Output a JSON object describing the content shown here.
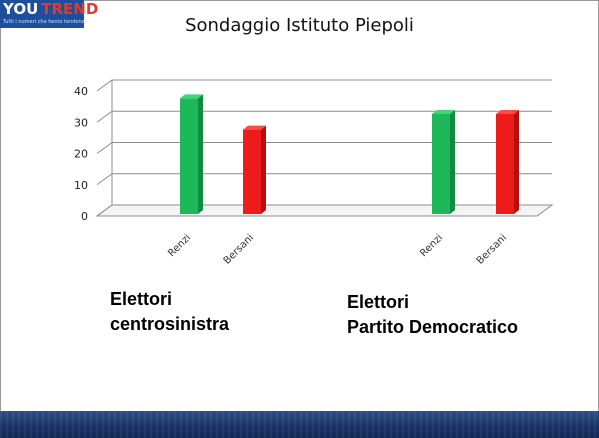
{
  "logo": {
    "main_you": "YOU",
    "main_trend": "TREND",
    "tagline": "Tutti i numeri che fanno tendenza"
  },
  "title": "Sondaggio Istituto Piepoli",
  "colors": {
    "renzi": "#1db85a",
    "bersani": "#ee1b1b",
    "grid": "#8c8c8c",
    "footer": "#1a3568"
  },
  "chart_data": {
    "type": "bar",
    "title": "Sondaggio Istituto Piepoli",
    "ylim": [
      0,
      40
    ],
    "yticks": [
      0,
      10,
      20,
      30,
      40
    ],
    "grid": true,
    "groups": [
      {
        "name": "Elettori centrosinistra",
        "label_lines": [
          "Elettori",
          "centrosinistra"
        ],
        "bars": [
          {
            "category": "Renzi",
            "value": 37
          },
          {
            "category": "Bersani",
            "value": 27
          }
        ]
      },
      {
        "name": "Elettori Partito Democratico",
        "label_lines": [
          "Elettori",
          "Partito Democratico"
        ],
        "bars": [
          {
            "category": "Renzi",
            "value": 32
          },
          {
            "category": "Bersani",
            "value": 32
          }
        ]
      }
    ]
  }
}
